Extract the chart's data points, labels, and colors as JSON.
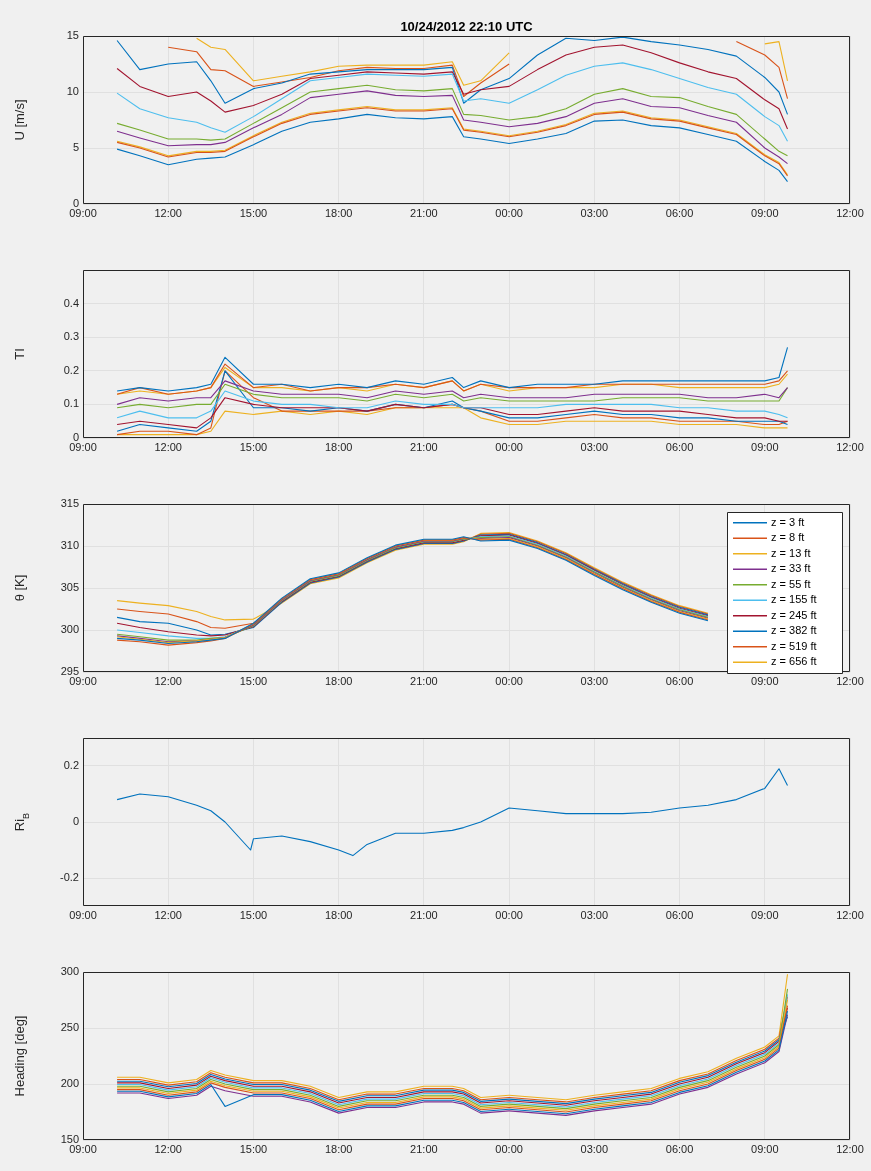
{
  "chart_data": [
    {
      "type": "line",
      "title": "10/24/2012 22:10 UTC",
      "ylabel": "U [m/s]",
      "xlim": [
        "2012-10-24T09:00",
        "2012-10-25T12:00"
      ],
      "xticks": [
        {
          "value": "2012-10-24T09:00",
          "label": "09:00"
        },
        {
          "value": "2012-10-24T12:00",
          "label": "12:00"
        },
        {
          "value": "2012-10-24T15:00",
          "label": "15:00"
        },
        {
          "value": "2012-10-24T18:00",
          "label": "18:00"
        },
        {
          "value": "2012-10-24T21:00",
          "label": "21:00"
        },
        {
          "value": "2012-10-25T00:00",
          "label": "00:00"
        },
        {
          "value": "2012-10-25T03:00",
          "label": "03:00"
        },
        {
          "value": "2012-10-25T06:00",
          "label": "06:00"
        },
        {
          "value": "2012-10-25T09:00",
          "label": "09:00"
        },
        {
          "value": "2012-10-25T12:00",
          "label": "12:00"
        }
      ],
      "ylim": [
        0,
        15
      ],
      "yticks": [
        0,
        5,
        10,
        15
      ],
      "grid": true,
      "x": [
        "2012-10-24T10:12",
        "2012-10-24T11:00",
        "2012-10-24T12:00",
        "2012-10-24T13:00",
        "2012-10-24T13:30",
        "2012-10-24T14:00",
        "2012-10-24T15:00",
        "2012-10-24T16:00",
        "2012-10-24T17:00",
        "2012-10-24T18:00",
        "2012-10-24T19:00",
        "2012-10-24T20:00",
        "2012-10-24T21:00",
        "2012-10-24T22:00",
        "2012-10-24T22:24",
        "2012-10-24T23:00",
        "2012-10-25T00:00",
        "2012-10-25T01:00",
        "2012-10-25T02:00",
        "2012-10-25T03:00",
        "2012-10-25T04:00",
        "2012-10-25T05:00",
        "2012-10-25T06:00",
        "2012-10-25T07:00",
        "2012-10-25T08:00",
        "2012-10-25T09:00",
        "2012-10-25T09:30",
        "2012-10-25T09:48"
      ],
      "series": [
        {
          "color": "#0072bd",
          "values": [
            4.9,
            4.3,
            3.5,
            4.0,
            4.1,
            4.2,
            5.3,
            6.5,
            7.3,
            7.6,
            8.0,
            7.7,
            7.6,
            7.8,
            6.0,
            5.8,
            5.4,
            5.8,
            6.3,
            7.4,
            7.5,
            7.0,
            6.8,
            6.2,
            5.6,
            3.8,
            3.0,
            2.0
          ]
        },
        {
          "color": "#d95319",
          "values": [
            5.5,
            5.0,
            4.2,
            4.6,
            4.6,
            4.7,
            6.0,
            7.2,
            8.0,
            8.3,
            8.6,
            8.3,
            8.3,
            8.5,
            6.6,
            6.4,
            6.0,
            6.4,
            7.0,
            8.0,
            8.2,
            7.6,
            7.4,
            6.8,
            6.2,
            4.3,
            3.6,
            2.5
          ]
        },
        {
          "color": "#edb120",
          "values": [
            5.6,
            5.1,
            4.3,
            4.7,
            4.7,
            4.8,
            6.1,
            7.3,
            8.1,
            8.4,
            8.7,
            8.4,
            8.4,
            8.6,
            6.7,
            6.5,
            6.1,
            6.5,
            7.1,
            8.1,
            8.3,
            7.7,
            7.5,
            6.9,
            6.3,
            4.4,
            3.7,
            2.6
          ]
        },
        {
          "color": "#7e2f8e",
          "values": [
            6.5,
            5.9,
            5.2,
            5.3,
            5.3,
            5.5,
            6.8,
            8.0,
            9.5,
            9.8,
            10.1,
            9.7,
            9.6,
            9.7,
            7.5,
            7.3,
            6.9,
            7.2,
            7.8,
            9.0,
            9.4,
            8.7,
            8.6,
            7.9,
            7.3,
            5.0,
            4.2,
            3.6
          ]
        },
        {
          "color": "#77ac30",
          "values": [
            7.2,
            6.6,
            5.8,
            5.8,
            5.7,
            5.8,
            7.2,
            8.6,
            10.0,
            10.3,
            10.6,
            10.2,
            10.1,
            10.3,
            8.0,
            7.9,
            7.5,
            7.8,
            8.5,
            9.8,
            10.3,
            9.6,
            9.5,
            8.7,
            8.0,
            5.8,
            4.7,
            4.3
          ]
        },
        {
          "color": "#4dbeee",
          "values": [
            9.9,
            8.5,
            7.7,
            7.3,
            6.8,
            6.4,
            7.8,
            9.4,
            11.0,
            11.3,
            11.6,
            11.5,
            11.4,
            11.6,
            9.2,
            9.4,
            9.0,
            10.2,
            11.5,
            12.3,
            12.6,
            12.0,
            11.2,
            10.4,
            9.8,
            7.8,
            7.0,
            5.6
          ]
        },
        {
          "color": "#a2142f",
          "values": [
            12.1,
            10.5,
            9.6,
            10.0,
            9.2,
            8.2,
            8.8,
            9.8,
            11.2,
            11.5,
            11.8,
            11.7,
            11.6,
            11.8,
            9.8,
            10.2,
            10.5,
            12.0,
            13.3,
            14.0,
            14.2,
            13.5,
            12.6,
            11.8,
            11.2,
            9.3,
            8.5,
            6.7
          ]
        },
        {
          "color": "#0072bd",
          "values": [
            14.6,
            12.0,
            12.5,
            12.7,
            11.0,
            9.0,
            10.3,
            10.8,
            11.6,
            11.8,
            12.0,
            12.0,
            12.0,
            12.2,
            9.0,
            10.2,
            11.2,
            13.3,
            14.8,
            14.6,
            14.9,
            14.5,
            14.2,
            13.8,
            13.2,
            11.3,
            10.0,
            8.0
          ]
        },
        {
          "color": "#d95319",
          "values": [
            null,
            null,
            14.0,
            13.6,
            12.0,
            11.9,
            10.5,
            10.9,
            11.3,
            11.9,
            12.2,
            12.1,
            12.1,
            12.4,
            9.6,
            10.8,
            12.5,
            null,
            null,
            null,
            null,
            null,
            null,
            null,
            14.5,
            13.3,
            12.2,
            9.4
          ]
        },
        {
          "color": "#edb120",
          "values": [
            null,
            null,
            null,
            14.8,
            14.0,
            13.8,
            11.0,
            11.4,
            11.8,
            12.3,
            12.4,
            12.4,
            12.4,
            12.7,
            10.6,
            11.0,
            13.5,
            null,
            null,
            null,
            null,
            null,
            null,
            null,
            null,
            14.3,
            14.5,
            11.0
          ]
        }
      ]
    },
    {
      "type": "line",
      "ylabel": "TI",
      "xlim": [
        "2012-10-24T09:00",
        "2012-10-25T12:00"
      ],
      "xticks": [
        {
          "value": "2012-10-24T09:00",
          "label": "09:00"
        },
        {
          "value": "2012-10-24T12:00",
          "label": "12:00"
        },
        {
          "value": "2012-10-24T15:00",
          "label": "15:00"
        },
        {
          "value": "2012-10-24T18:00",
          "label": "18:00"
        },
        {
          "value": "2012-10-24T21:00",
          "label": "21:00"
        },
        {
          "value": "2012-10-25T00:00",
          "label": "00:00"
        },
        {
          "value": "2012-10-25T03:00",
          "label": "03:00"
        },
        {
          "value": "2012-10-25T06:00",
          "label": "06:00"
        },
        {
          "value": "2012-10-25T09:00",
          "label": "09:00"
        },
        {
          "value": "2012-10-25T12:00",
          "label": "12:00"
        }
      ],
      "ylim": [
        0,
        0.5
      ],
      "yticks": [
        0,
        0.1,
        0.2,
        0.3,
        0.4
      ],
      "grid": true,
      "x": [
        "2012-10-24T10:12",
        "2012-10-24T11:00",
        "2012-10-24T12:00",
        "2012-10-24T13:00",
        "2012-10-24T13:30",
        "2012-10-24T14:00",
        "2012-10-24T15:00",
        "2012-10-24T16:00",
        "2012-10-24T17:00",
        "2012-10-24T18:00",
        "2012-10-24T19:00",
        "2012-10-24T20:00",
        "2012-10-24T21:00",
        "2012-10-24T22:00",
        "2012-10-24T22:24",
        "2012-10-24T23:00",
        "2012-10-25T00:00",
        "2012-10-25T01:00",
        "2012-10-25T02:00",
        "2012-10-25T03:00",
        "2012-10-25T04:00",
        "2012-10-25T05:00",
        "2012-10-25T06:00",
        "2012-10-25T07:00",
        "2012-10-25T08:00",
        "2012-10-25T09:00",
        "2012-10-25T09:30",
        "2012-10-25T09:48"
      ],
      "series": [
        {
          "color": "#0072bd",
          "values": [
            0.14,
            0.15,
            0.14,
            0.15,
            0.16,
            0.24,
            0.16,
            0.16,
            0.15,
            0.16,
            0.15,
            0.17,
            0.16,
            0.18,
            0.15,
            0.17,
            0.15,
            0.16,
            0.16,
            0.16,
            0.17,
            0.17,
            0.17,
            0.17,
            0.17,
            0.17,
            0.18,
            0.27
          ]
        },
        {
          "color": "#d95319",
          "values": [
            0.13,
            0.15,
            0.13,
            0.14,
            0.15,
            0.22,
            0.15,
            0.16,
            0.14,
            0.15,
            0.15,
            0.16,
            0.15,
            0.17,
            0.14,
            0.16,
            0.15,
            0.15,
            0.15,
            0.16,
            0.16,
            0.16,
            0.16,
            0.16,
            0.16,
            0.16,
            0.17,
            0.2
          ]
        },
        {
          "color": "#edb120",
          "values": [
            0.13,
            0.14,
            0.13,
            0.14,
            0.15,
            0.21,
            0.15,
            0.15,
            0.14,
            0.15,
            0.14,
            0.16,
            0.15,
            0.17,
            0.14,
            0.16,
            0.14,
            0.15,
            0.15,
            0.15,
            0.16,
            0.16,
            0.15,
            0.15,
            0.15,
            0.15,
            0.16,
            0.19
          ]
        },
        {
          "color": "#7e2f8e",
          "values": [
            0.1,
            0.12,
            0.11,
            0.12,
            0.12,
            0.17,
            0.14,
            0.13,
            0.13,
            0.13,
            0.12,
            0.14,
            0.13,
            0.14,
            0.12,
            0.13,
            0.12,
            0.12,
            0.12,
            0.13,
            0.13,
            0.13,
            0.13,
            0.12,
            0.12,
            0.13,
            0.12,
            0.15
          ]
        },
        {
          "color": "#77ac30",
          "values": [
            0.09,
            0.1,
            0.09,
            0.1,
            0.1,
            0.16,
            0.13,
            0.12,
            0.12,
            0.12,
            0.11,
            0.13,
            0.12,
            0.13,
            0.11,
            0.12,
            0.11,
            0.11,
            0.11,
            0.11,
            0.12,
            0.12,
            0.12,
            0.11,
            0.11,
            0.11,
            0.11,
            0.15
          ]
        },
        {
          "color": "#4dbeee",
          "values": [
            0.06,
            0.08,
            0.06,
            0.06,
            0.08,
            0.14,
            0.11,
            0.1,
            0.1,
            0.09,
            0.09,
            0.11,
            0.1,
            0.1,
            0.09,
            0.09,
            0.09,
            0.09,
            0.1,
            0.1,
            0.1,
            0.1,
            0.09,
            0.09,
            0.08,
            0.08,
            0.07,
            0.06
          ]
        },
        {
          "color": "#a2142f",
          "values": [
            0.04,
            0.05,
            0.04,
            0.03,
            0.06,
            0.12,
            0.1,
            0.09,
            0.09,
            0.09,
            0.08,
            0.1,
            0.09,
            0.1,
            0.09,
            0.09,
            0.07,
            0.07,
            0.08,
            0.09,
            0.08,
            0.08,
            0.08,
            0.07,
            0.06,
            0.06,
            0.05,
            0.05
          ]
        },
        {
          "color": "#0072bd",
          "values": [
            0.02,
            0.04,
            0.03,
            0.02,
            0.05,
            0.2,
            0.09,
            0.09,
            0.08,
            0.09,
            0.08,
            0.1,
            0.09,
            0.11,
            0.09,
            0.08,
            0.06,
            0.06,
            0.07,
            0.08,
            0.07,
            0.07,
            0.06,
            0.06,
            0.05,
            0.05,
            0.05,
            0.04
          ]
        },
        {
          "color": "#d95319",
          "values": [
            0.01,
            0.02,
            0.02,
            0.01,
            0.03,
            0.2,
            0.12,
            0.08,
            0.08,
            0.08,
            0.08,
            0.09,
            0.09,
            0.1,
            0.09,
            0.08,
            0.05,
            0.05,
            0.06,
            0.07,
            0.06,
            0.06,
            0.05,
            0.05,
            0.05,
            0.04,
            0.04,
            0.05
          ]
        },
        {
          "color": "#edb120",
          "values": [
            0.01,
            0.01,
            0.01,
            0.01,
            0.02,
            0.08,
            0.07,
            0.08,
            0.07,
            0.08,
            0.07,
            0.09,
            0.09,
            0.09,
            0.09,
            0.06,
            0.04,
            0.04,
            0.05,
            0.05,
            0.05,
            0.05,
            0.04,
            0.04,
            0.04,
            0.03,
            0.03,
            0.03
          ]
        }
      ]
    },
    {
      "type": "line",
      "ylabel": "θ [K]",
      "xlim": [
        "2012-10-24T09:00",
        "2012-10-25T12:00"
      ],
      "legend": "right",
      "xticks": [
        {
          "value": "2012-10-24T09:00",
          "label": "09:00"
        },
        {
          "value": "2012-10-24T12:00",
          "label": "12:00"
        },
        {
          "value": "2012-10-24T15:00",
          "label": "15:00"
        },
        {
          "value": "2012-10-24T18:00",
          "label": "18:00"
        },
        {
          "value": "2012-10-24T21:00",
          "label": "21:00"
        },
        {
          "value": "2012-10-25T00:00",
          "label": "00:00"
        },
        {
          "value": "2012-10-25T03:00",
          "label": "03:00"
        },
        {
          "value": "2012-10-25T06:00",
          "label": "06:00"
        },
        {
          "value": "2012-10-25T09:00",
          "label": "09:00"
        },
        {
          "value": "2012-10-25T12:00",
          "label": "12:00"
        }
      ],
      "ylim": [
        295,
        315
      ],
      "yticks": [
        295,
        300,
        305,
        310,
        315
      ],
      "grid": true,
      "x": [
        "2012-10-24T10:12",
        "2012-10-24T11:00",
        "2012-10-24T12:00",
        "2012-10-24T13:00",
        "2012-10-24T13:30",
        "2012-10-24T14:00",
        "2012-10-24T15:00",
        "2012-10-24T16:00",
        "2012-10-24T17:00",
        "2012-10-24T18:00",
        "2012-10-24T19:00",
        "2012-10-24T20:00",
        "2012-10-24T21:00",
        "2012-10-24T22:00",
        "2012-10-24T22:24",
        "2012-10-24T23:00",
        "2012-10-25T00:00",
        "2012-10-25T01:00",
        "2012-10-25T02:00",
        "2012-10-25T03:00",
        "2012-10-25T04:00",
        "2012-10-25T05:00",
        "2012-10-25T06:00",
        "2012-10-25T07:00"
      ],
      "series": [
        {
          "name": "z = 3 ft",
          "color": "#0072bd",
          "values": [
            299.0,
            298.8,
            298.4,
            298.6,
            298.8,
            299.0,
            300.8,
            303.8,
            306.1,
            306.8,
            308.6,
            310.1,
            310.8,
            310.8,
            311.1,
            310.6,
            310.7,
            309.7,
            308.3,
            306.5,
            304.8,
            303.3,
            302.0,
            301.1
          ]
        },
        {
          "name": "z = 8 ft",
          "color": "#d95319",
          "values": [
            298.8,
            298.6,
            298.2,
            298.5,
            298.7,
            299.0,
            300.7,
            303.7,
            306.0,
            306.7,
            308.5,
            310.0,
            310.7,
            310.7,
            311.0,
            310.7,
            310.8,
            309.8,
            308.4,
            306.6,
            304.9,
            303.4,
            302.1,
            301.2
          ]
        },
        {
          "name": "z = 13 ft",
          "color": "#edb120",
          "values": [
            299.2,
            298.9,
            298.5,
            298.7,
            298.9,
            299.1,
            300.7,
            303.7,
            306.0,
            306.7,
            308.5,
            310.0,
            310.7,
            310.7,
            311.0,
            310.8,
            310.9,
            309.9,
            308.5,
            306.7,
            305.0,
            303.5,
            302.2,
            301.3
          ]
        },
        {
          "name": "z = 33 ft",
          "color": "#7e2f8e",
          "values": [
            299.3,
            299.0,
            298.6,
            298.7,
            298.9,
            299.1,
            300.6,
            303.6,
            305.9,
            306.6,
            308.4,
            309.9,
            310.6,
            310.6,
            310.9,
            310.9,
            311.0,
            310.0,
            308.6,
            306.8,
            305.1,
            303.6,
            302.3,
            301.4
          ]
        },
        {
          "name": "z = 55 ft",
          "color": "#77ac30",
          "values": [
            299.5,
            299.2,
            298.8,
            298.8,
            299.0,
            299.1,
            300.5,
            303.5,
            305.8,
            306.5,
            308.3,
            309.8,
            310.5,
            310.5,
            310.8,
            311.0,
            311.1,
            310.1,
            308.7,
            306.9,
            305.2,
            303.7,
            302.4,
            301.5
          ]
        },
        {
          "name": "z = 155 ft",
          "color": "#4dbeee",
          "values": [
            300.0,
            299.7,
            299.3,
            299.0,
            299.0,
            299.2,
            300.5,
            303.5,
            305.8,
            306.5,
            308.3,
            309.8,
            310.5,
            310.5,
            310.8,
            311.1,
            311.2,
            310.2,
            308.8,
            307.0,
            305.3,
            303.8,
            302.5,
            301.6
          ]
        },
        {
          "name": "z = 245 ft",
          "color": "#a2142f",
          "values": [
            300.8,
            300.3,
            299.8,
            299.4,
            299.3,
            299.4,
            300.4,
            303.4,
            305.7,
            306.4,
            308.2,
            309.7,
            310.4,
            310.4,
            310.7,
            311.2,
            311.3,
            310.3,
            308.9,
            307.1,
            305.4,
            303.9,
            302.6,
            301.7
          ]
        },
        {
          "name": "z = 382 ft",
          "color": "#0072bd",
          "values": [
            301.5,
            301.0,
            300.8,
            300.0,
            299.4,
            299.5,
            300.3,
            303.3,
            305.6,
            306.3,
            308.1,
            309.6,
            310.3,
            310.3,
            310.6,
            311.3,
            311.4,
            310.4,
            309.0,
            307.2,
            305.5,
            304.0,
            302.7,
            301.8
          ]
        },
        {
          "name": "z = 519 ft",
          "color": "#d95319",
          "values": [
            302.5,
            302.2,
            301.9,
            301.0,
            300.3,
            300.2,
            300.8,
            303.3,
            305.6,
            306.3,
            308.1,
            309.6,
            310.3,
            310.3,
            310.6,
            311.4,
            311.5,
            310.5,
            309.1,
            307.3,
            305.6,
            304.1,
            302.8,
            301.9
          ]
        },
        {
          "name": "z = 656 ft",
          "color": "#edb120",
          "values": [
            303.5,
            303.2,
            302.9,
            302.2,
            301.6,
            301.2,
            301.3,
            303.2,
            305.5,
            306.2,
            308.0,
            309.5,
            310.2,
            310.2,
            310.5,
            311.5,
            311.6,
            310.6,
            309.2,
            307.4,
            305.7,
            304.2,
            302.9,
            302.0
          ]
        }
      ]
    },
    {
      "type": "line",
      "ylabel": "Ri$_{B}$",
      "xlim": [
        "2012-10-24T09:00",
        "2012-10-25T12:00"
      ],
      "xticks": [
        {
          "value": "2012-10-24T09:00",
          "label": "09:00"
        },
        {
          "value": "2012-10-24T12:00",
          "label": "12:00"
        },
        {
          "value": "2012-10-24T15:00",
          "label": "15:00"
        },
        {
          "value": "2012-10-24T18:00",
          "label": "18:00"
        },
        {
          "value": "2012-10-24T21:00",
          "label": "21:00"
        },
        {
          "value": "2012-10-25T00:00",
          "label": "00:00"
        },
        {
          "value": "2012-10-25T03:00",
          "label": "03:00"
        },
        {
          "value": "2012-10-25T06:00",
          "label": "06:00"
        },
        {
          "value": "2012-10-25T09:00",
          "label": "09:00"
        },
        {
          "value": "2012-10-25T12:00",
          "label": "12:00"
        }
      ],
      "ylim": [
        -0.3,
        0.3
      ],
      "yticks": [
        -0.2,
        0,
        0.2
      ],
      "grid": true,
      "x": [
        "2012-10-24T10:12",
        "2012-10-24T11:00",
        "2012-10-24T12:00",
        "2012-10-24T13:00",
        "2012-10-24T13:30",
        "2012-10-24T14:00",
        "2012-10-24T14:54",
        "2012-10-24T15:00",
        "2012-10-24T16:00",
        "2012-10-24T17:00",
        "2012-10-24T18:00",
        "2012-10-24T18:30",
        "2012-10-24T19:00",
        "2012-10-24T20:00",
        "2012-10-24T21:00",
        "2012-10-24T22:00",
        "2012-10-24T22:24",
        "2012-10-24T23:00",
        "2012-10-25T00:00",
        "2012-10-25T01:00",
        "2012-10-25T02:00",
        "2012-10-25T03:00",
        "2012-10-25T04:00",
        "2012-10-25T05:00",
        "2012-10-25T06:00",
        "2012-10-25T07:00",
        "2012-10-25T08:00",
        "2012-10-25T09:00",
        "2012-10-25T09:30",
        "2012-10-25T09:48"
      ],
      "series": [
        {
          "color": "#0072bd",
          "values": [
            0.08,
            0.1,
            0.09,
            0.06,
            0.04,
            0.0,
            -0.1,
            -0.06,
            -0.05,
            -0.07,
            -0.1,
            -0.12,
            -0.08,
            -0.04,
            -0.04,
            -0.03,
            -0.02,
            0.0,
            0.05,
            0.04,
            0.03,
            0.03,
            0.03,
            0.035,
            0.05,
            0.06,
            0.08,
            0.12,
            0.19,
            0.13
          ]
        }
      ]
    },
    {
      "type": "line",
      "ylabel": "Heading [deg]",
      "xlim": [
        "2012-10-24T09:00",
        "2012-10-25T12:00"
      ],
      "xticks": [
        {
          "value": "2012-10-24T09:00",
          "label": "09:00"
        },
        {
          "value": "2012-10-24T12:00",
          "label": "12:00"
        },
        {
          "value": "2012-10-24T15:00",
          "label": "15:00"
        },
        {
          "value": "2012-10-24T18:00",
          "label": "18:00"
        },
        {
          "value": "2012-10-24T21:00",
          "label": "21:00"
        },
        {
          "value": "2012-10-25T00:00",
          "label": "00:00"
        },
        {
          "value": "2012-10-25T03:00",
          "label": "03:00"
        },
        {
          "value": "2012-10-25T06:00",
          "label": "06:00"
        },
        {
          "value": "2012-10-25T09:00",
          "label": "09:00"
        },
        {
          "value": "2012-10-25T12:00",
          "label": "12:00"
        }
      ],
      "ylim": [
        150,
        300
      ],
      "yticks": [
        150,
        200,
        250,
        300
      ],
      "grid": true,
      "x": [
        "2012-10-24T10:12",
        "2012-10-24T11:00",
        "2012-10-24T12:00",
        "2012-10-24T13:00",
        "2012-10-24T13:30",
        "2012-10-24T14:00",
        "2012-10-24T15:00",
        "2012-10-24T16:00",
        "2012-10-24T17:00",
        "2012-10-24T18:00",
        "2012-10-24T19:00",
        "2012-10-24T20:00",
        "2012-10-24T21:00",
        "2012-10-24T22:00",
        "2012-10-24T22:24",
        "2012-10-24T23:00",
        "2012-10-25T00:00",
        "2012-10-25T01:00",
        "2012-10-25T02:00",
        "2012-10-25T03:00",
        "2012-10-25T04:00",
        "2012-10-25T05:00",
        "2012-10-25T06:00",
        "2012-10-25T07:00",
        "2012-10-25T08:00",
        "2012-10-25T09:00",
        "2012-10-25T09:30",
        "2012-10-25T09:48"
      ],
      "series": [
        {
          "color": "#0072bd",
          "values": [
            193.5,
            193.5,
            188.5,
            191.5,
            199.5,
            180,
            190.5,
            190.5,
            185.5,
            175.5,
            180.5,
            180.5,
            185.5,
            185.5,
            183.5,
            175.5,
            177.5,
            175.5,
            173.5,
            177.5,
            180.5,
            183.5,
            192.5,
            198.5,
            210.5,
            220.5,
            230.5,
            265
          ]
        },
        {
          "color": "#d95319",
          "values": [
            195,
            195,
            190,
            193,
            201,
            197,
            192,
            192,
            187,
            177,
            182,
            182,
            187,
            187,
            185,
            177,
            179,
            177,
            175,
            179,
            182,
            185,
            194,
            200,
            212,
            222,
            232,
            270
          ]
        },
        {
          "color": "#edb120",
          "values": [
            196.5,
            196.5,
            191.5,
            194.5,
            202.5,
            198.5,
            193.5,
            193.5,
            188.5,
            178.5,
            183.5,
            183.5,
            188.5,
            188.5,
            186.5,
            178.5,
            180.5,
            178.5,
            176.5,
            180.5,
            183.5,
            186.5,
            195.5,
            201.5,
            213.5,
            223.5,
            233.5,
            275
          ]
        },
        {
          "color": "#7e2f8e",
          "values": [
            192,
            192,
            187,
            190,
            198,
            194,
            189,
            189,
            184,
            174,
            179,
            179,
            184,
            184,
            182,
            174,
            176,
            174,
            172,
            176,
            179,
            182,
            191,
            197,
            209,
            219,
            229,
            262
          ]
        },
        {
          "color": "#77ac30",
          "values": [
            198,
            198,
            193,
            196,
            204,
            200,
            195,
            195,
            190,
            180,
            185,
            185,
            190,
            190,
            188,
            180,
            182,
            180,
            178,
            182,
            185,
            188,
            197,
            203,
            215,
            225,
            235,
            285
          ]
        },
        {
          "color": "#4dbeee",
          "values": [
            199.5,
            199.5,
            194.5,
            197.5,
            205.5,
            201.5,
            196.5,
            196.5,
            191.5,
            181.5,
            186.5,
            186.5,
            191.5,
            191.5,
            189.5,
            181.5,
            183.5,
            181.5,
            179.5,
            183.5,
            186.5,
            189.5,
            198.5,
            204.5,
            216.5,
            226.5,
            236.5,
            280
          ]
        },
        {
          "color": "#a2142f",
          "values": [
            201,
            201,
            196,
            199,
            207,
            203,
            198,
            198,
            193,
            183,
            188,
            188,
            193,
            193,
            191,
            183,
            185,
            183,
            181,
            185,
            188,
            191,
            200,
            206,
            218,
            228,
            238,
            268
          ]
        },
        {
          "color": "#0072bd",
          "values": [
            202.5,
            202.5,
            197.5,
            200.5,
            208.5,
            204.5,
            199.5,
            199.5,
            194.5,
            184.5,
            189.5,
            189.5,
            194.5,
            194.5,
            192.5,
            184.5,
            186.5,
            184.5,
            182.5,
            186.5,
            189.5,
            192.5,
            201.5,
            207.5,
            219.5,
            229.5,
            239.5,
            260
          ]
        },
        {
          "color": "#d95319",
          "values": [
            204,
            204,
            199,
            202,
            210,
            206,
            201,
            201,
            196,
            186,
            191,
            191,
            196,
            196,
            194,
            186,
            188,
            186,
            184,
            188,
            191,
            194,
            203,
            209,
            221,
            231,
            241,
            278
          ]
        },
        {
          "color": "#edb120",
          "values": [
            206,
            206,
            201,
            204,
            212,
            208,
            203,
            203,
            198,
            188,
            193,
            193,
            198,
            198,
            196,
            188,
            190,
            188,
            186,
            190,
            193,
            196,
            205,
            211,
            223,
            233,
            243,
            298
          ]
        }
      ]
    }
  ]
}
